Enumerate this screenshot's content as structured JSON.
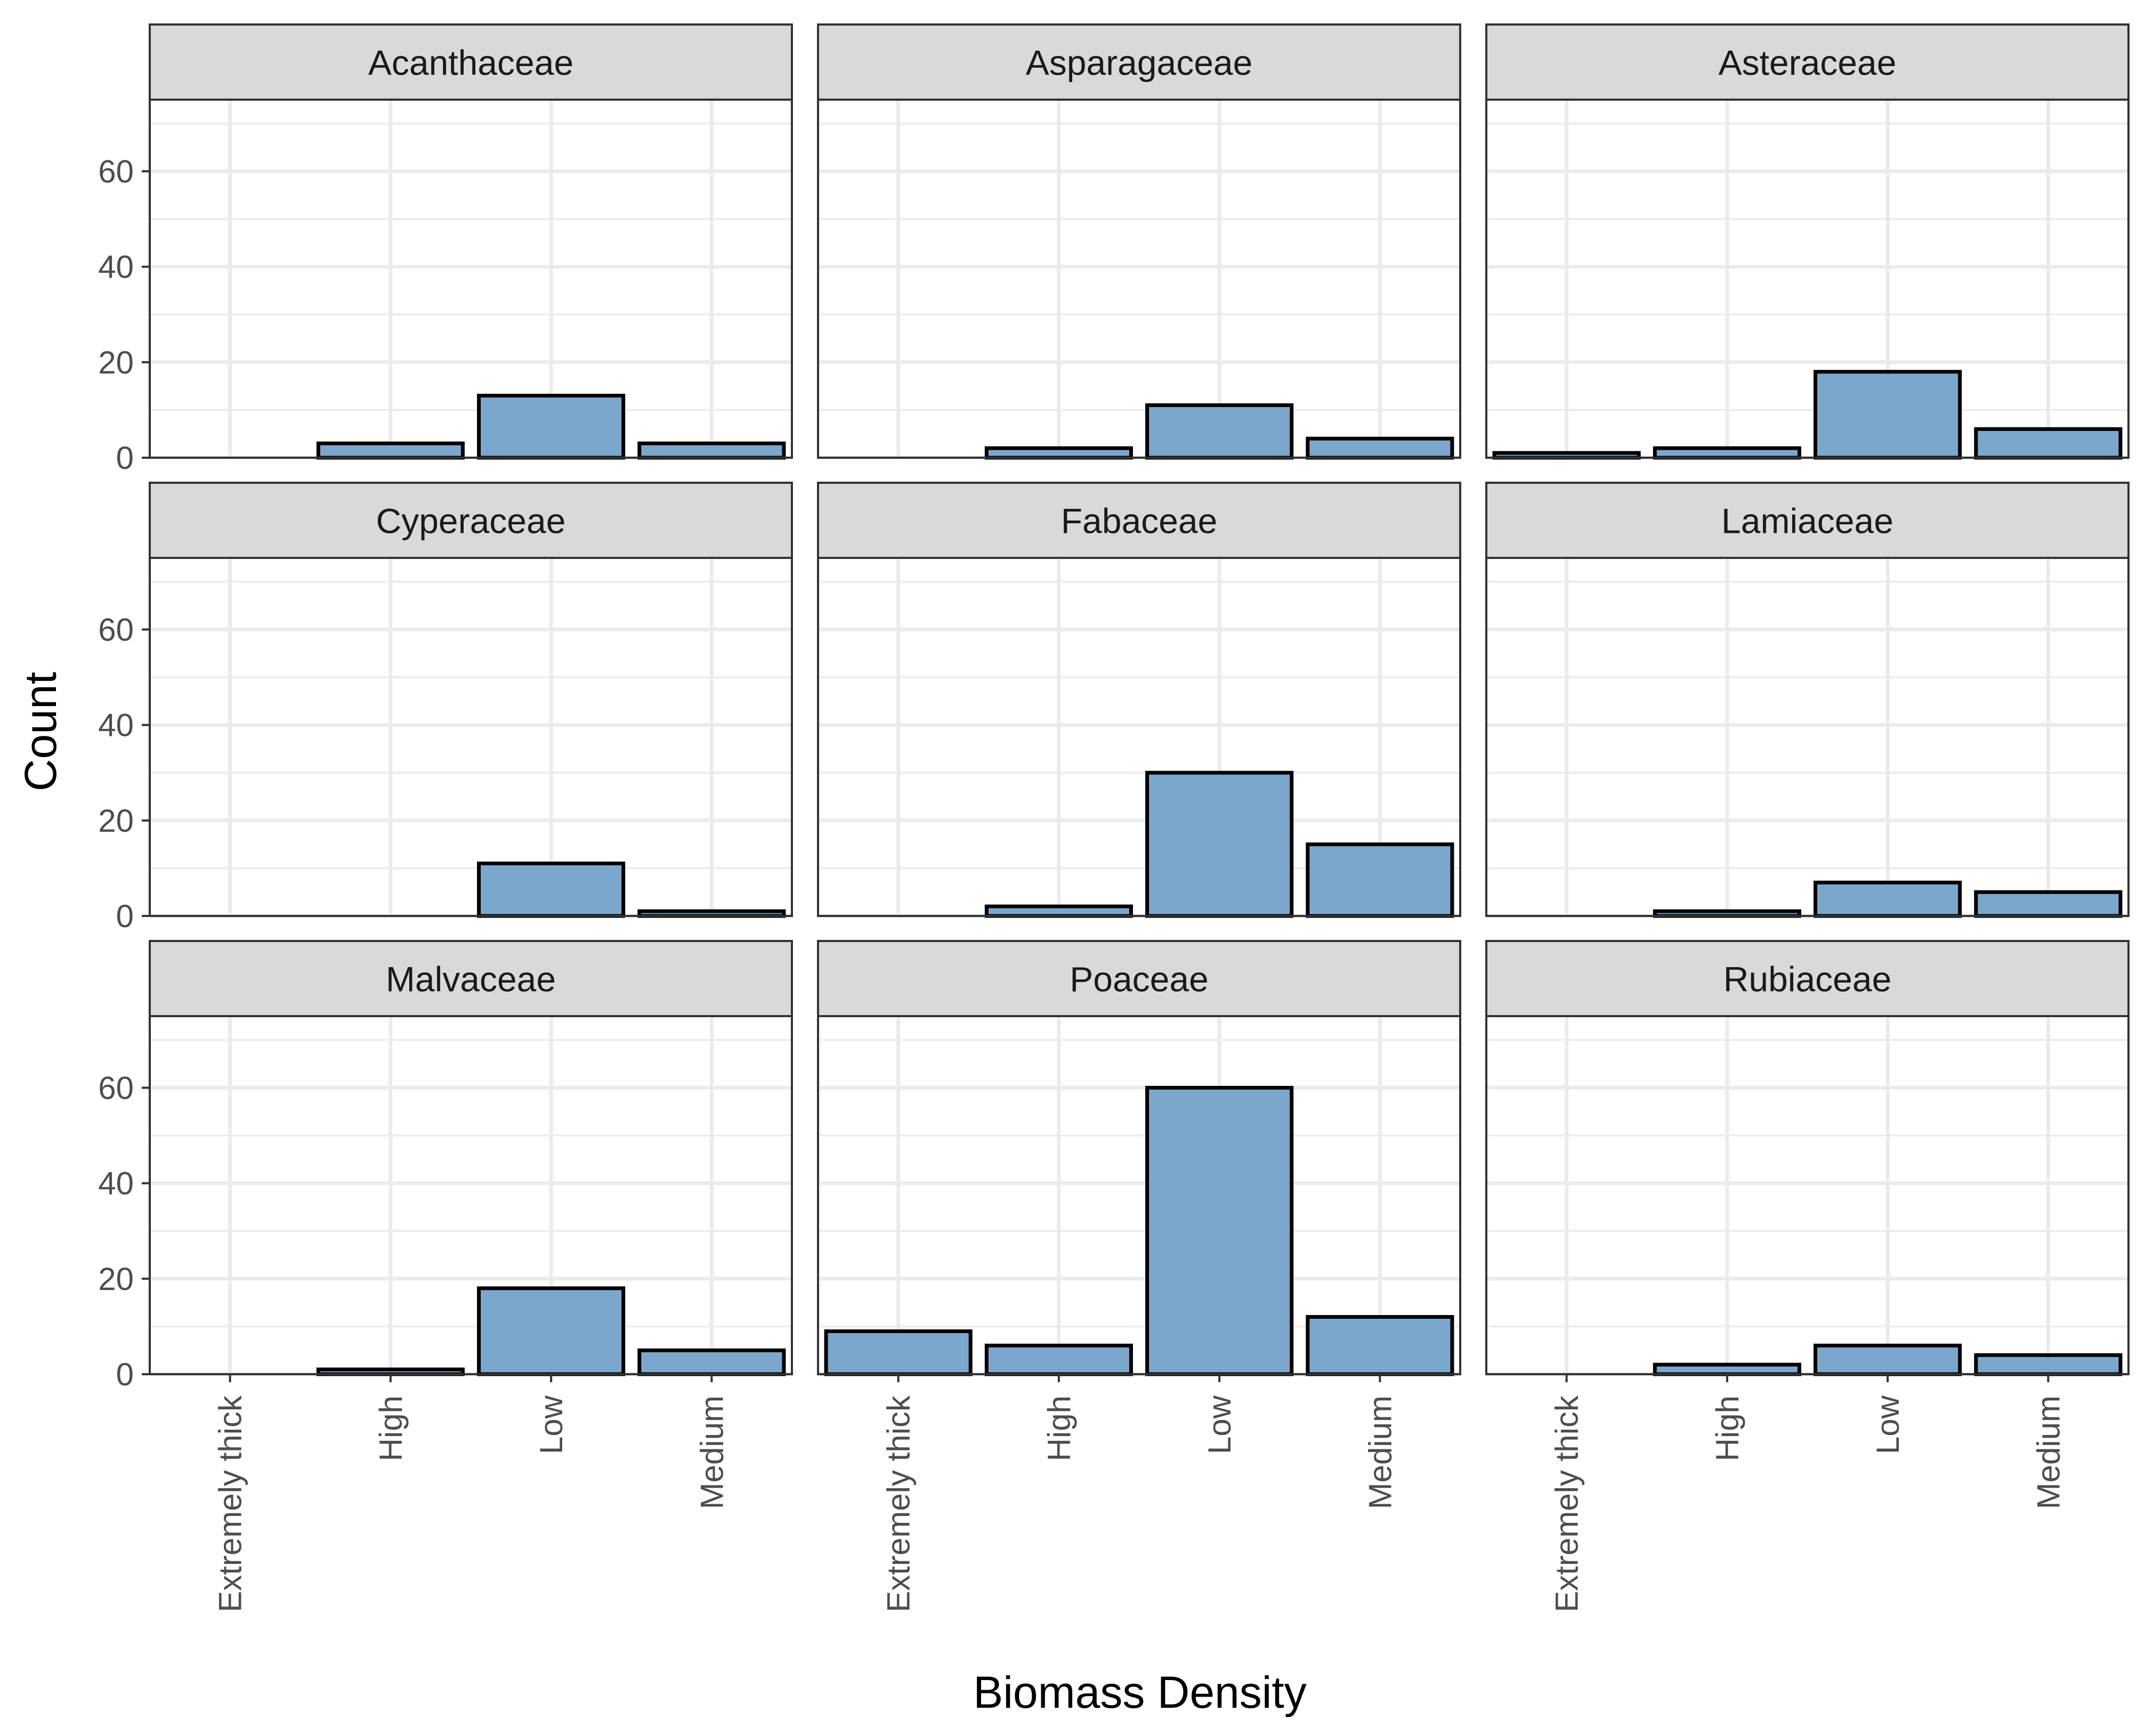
{
  "chart_data": {
    "type": "bar",
    "layout": "facet_wrap",
    "xlabel": "Biomass Density",
    "ylabel": "Count",
    "ylim": [
      0,
      75
    ],
    "yticks": [
      0,
      20,
      40,
      60
    ],
    "grid": true,
    "bar_color": "#7BA7CC",
    "categories": [
      "Extremely thick",
      "High",
      "Low",
      "Medium"
    ],
    "facets": [
      {
        "name": "Acanthaceae",
        "values": [
          0,
          3,
          13,
          3
        ]
      },
      {
        "name": "Asparagaceae",
        "values": [
          0,
          2,
          11,
          4
        ]
      },
      {
        "name": "Asteraceae",
        "values": [
          1,
          2,
          18,
          6
        ]
      },
      {
        "name": "Cyperaceae",
        "values": [
          0,
          0,
          11,
          1
        ]
      },
      {
        "name": "Fabaceae",
        "values": [
          0,
          2,
          30,
          15
        ]
      },
      {
        "name": "Lamiaceae",
        "values": [
          0,
          1,
          7,
          5
        ]
      },
      {
        "name": "Malvaceae",
        "values": [
          0,
          1,
          18,
          5
        ]
      },
      {
        "name": "Poaceae",
        "values": [
          9,
          6,
          60,
          12
        ]
      },
      {
        "name": "Rubiaceae",
        "values": [
          0,
          2,
          6,
          4
        ]
      }
    ]
  }
}
